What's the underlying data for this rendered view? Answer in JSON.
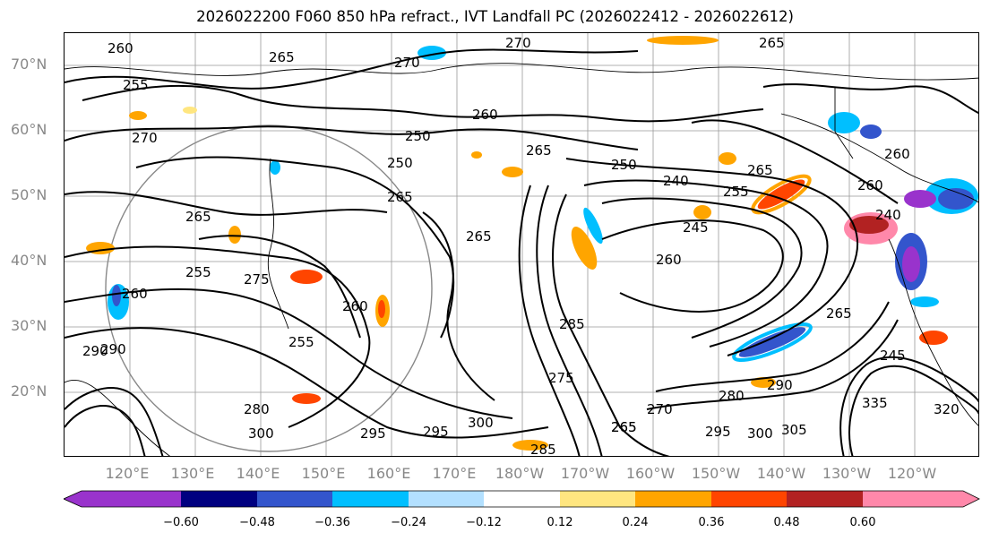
{
  "title": "2026022200 F060 850 hPa refract., IVT Landfall PC (2026022412 - 2026022612)",
  "map": {
    "lat_labels": [
      "70°N",
      "60°N",
      "50°N",
      "40°N",
      "30°N",
      "20°N"
    ],
    "lon_labels": [
      "120°E",
      "130°E",
      "140°E",
      "150°E",
      "160°E",
      "170°E",
      "180°W",
      "170°W",
      "160°W",
      "150°W",
      "140°W",
      "130°W",
      "120°W"
    ],
    "contour_labels": [
      "260",
      "265",
      "270",
      "265",
      "270",
      "255",
      "260",
      "270",
      "265",
      "250",
      "240",
      "265",
      "255",
      "260",
      "265",
      "255",
      "260",
      "245",
      "265",
      "275",
      "260",
      "250",
      "240",
      "260",
      "260",
      "255",
      "285",
      "265",
      "290",
      "295",
      "275",
      "270",
      "265",
      "280",
      "295",
      "300",
      "290",
      "305",
      "245",
      "300",
      "335",
      "320",
      "280",
      "300",
      "295",
      "285",
      "265",
      "290",
      "265",
      "250"
    ]
  },
  "colorbar": {
    "colors": [
      "#9933cc",
      "#000080",
      "#3355cc",
      "#00bfff",
      "#b3e0ff",
      "#ffffff",
      "#ffe680",
      "#ffa500",
      "#ff4500",
      "#b22222",
      "#ff88aa"
    ],
    "ticks": [
      "−0.60",
      "−0.48",
      "−0.36",
      "−0.24",
      "−0.12",
      "0.12",
      "0.24",
      "0.36",
      "0.48",
      "0.60"
    ]
  }
}
